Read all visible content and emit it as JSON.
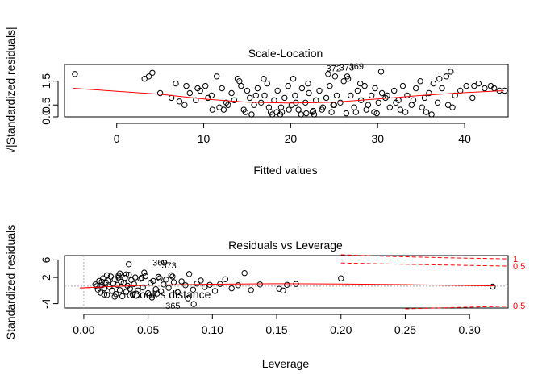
{
  "chart_data": [
    {
      "type": "scatter",
      "title": "Scale-Location",
      "xlabel": "Fitted values",
      "ylabel": "√|Standardized residuals|",
      "xlim": [
        -6,
        45
      ],
      "ylim": [
        0,
        2.2
      ],
      "xticks": [
        "0",
        "10",
        "20",
        "30",
        "40"
      ],
      "xtick_values": [
        0,
        10,
        20,
        30,
        40
      ],
      "yticks": [
        "0.0",
        "0.5",
        "1.5"
      ],
      "ytick_values": [
        0.0,
        0.5,
        1.5
      ],
      "point_labels": [
        {
          "text": "372",
          "x": 25.8,
          "y": 2.05
        },
        {
          "text": "373",
          "x": 27.3,
          "y": 2.08
        },
        {
          "text": "369",
          "x": 28.4,
          "y": 2.13
        }
      ],
      "smooth": {
        "color": "#ff0000",
        "x": [
          -5,
          5,
          10,
          15,
          20,
          25,
          30,
          35,
          40,
          44.5
        ],
        "y": [
          1.2,
          0.95,
          0.75,
          0.62,
          0.58,
          0.62,
          0.75,
          0.9,
          1.02,
          1.1
        ]
      },
      "points": {
        "x": [
          -4.8,
          3.2,
          3.7,
          4.1,
          5.0,
          6.3,
          6.8,
          7.2,
          7.8,
          8.4,
          9.1,
          9.6,
          10.2,
          10.9,
          11.5,
          11.8,
          12.1,
          12.6,
          13.2,
          13.5,
          14.1,
          14.6,
          15.0,
          15.3,
          15.8,
          16.2,
          16.6,
          17.0,
          17.3,
          17.7,
          18.1,
          18.5,
          18.9,
          19.3,
          19.7,
          20.1,
          20.5,
          20.9,
          21.3,
          21.7,
          22.1,
          22.5,
          22.9,
          23.3,
          23.7,
          24.1,
          24.5,
          24.9,
          25.3,
          25.7,
          26.1,
          26.5,
          26.9,
          27.3,
          27.7,
          28.1,
          28.5,
          28.9,
          29.3,
          29.7,
          30.1,
          30.5,
          30.9,
          31.4,
          31.9,
          32.4,
          32.9,
          33.4,
          33.9,
          34.4,
          34.9,
          35.4,
          35.9,
          36.4,
          36.9,
          37.4,
          37.9,
          38.4,
          38.9,
          39.5,
          40.2,
          40.9,
          41.6,
          42.3,
          43.0,
          44.0,
          44.6,
          9.3,
          11.0,
          12.8,
          14.3,
          16.0,
          17.5,
          19.0,
          20.6,
          22.0,
          23.6,
          25.0,
          26.6,
          28.0,
          29.6,
          31.1,
          32.6,
          34.1,
          35.6,
          37.1,
          38.6,
          15.5,
          17.9,
          20.3,
          22.7,
          25.1,
          27.5,
          29.9,
          18.4,
          21.2,
          24.3,
          13.9,
          16.9,
          19.8,
          22.6,
          26.4,
          30.4,
          33.2,
          36.2,
          8.0,
          10.5,
          12.3,
          14.8,
          18.8,
          21.8,
          24.7,
          28.7,
          32.1,
          35.1,
          38.1,
          41.1,
          43.4
        ],
        "y": [
          1.8,
          1.6,
          1.7,
          1.85,
          1.0,
          0.8,
          1.4,
          0.65,
          0.5,
          1.0,
          0.7,
          1.1,
          1.3,
          0.9,
          1.7,
          0.4,
          1.2,
          0.6,
          1.0,
          0.7,
          1.5,
          0.3,
          1.1,
          0.8,
          0.5,
          1.2,
          0.6,
          0.9,
          1.4,
          0.2,
          0.7,
          1.1,
          0.4,
          0.8,
          1.3,
          0.5,
          0.9,
          0.3,
          1.2,
          0.6,
          1.0,
          0.2,
          0.7,
          1.1,
          0.4,
          0.8,
          1.3,
          0.5,
          0.9,
          0.6,
          1.5,
          1.7,
          0.9,
          0.4,
          1.1,
          0.7,
          1.3,
          0.5,
          0.9,
          1.2,
          0.6,
          1.0,
          0.8,
          0.4,
          1.1,
          0.7,
          1.3,
          0.9,
          0.5,
          1.2,
          1.5,
          0.8,
          1.0,
          1.4,
          0.6,
          1.2,
          1.7,
          1.9,
          0.9,
          1.1,
          1.3,
          0.8,
          1.4,
          1.2,
          1.3,
          1.1,
          1.1,
          1.2,
          0.3,
          0.5,
          1.3,
          0.9,
          0.4,
          0.2,
          0.6,
          1.4,
          0.3,
          0.5,
          1.6,
          1.4,
          0.2,
          0.9,
          0.3,
          0.7,
          0.2,
          1.6,
          0.4,
          0.1,
          0.1,
          1.6,
          0.1,
          1.7,
          0.2,
          0.15,
          0.2,
          0.1,
          1.8,
          1.6,
          1.6,
          0.3,
          0.25,
          0.15,
          1.9,
          0.2,
          0.1,
          1.3,
          0.8,
          0.3,
          0.2,
          0.1,
          0.15,
          0.2,
          0.3,
          0.6,
          0.4,
          0.5,
          1.3,
          1.2
        ]
      }
    },
    {
      "type": "scatter",
      "title": "Residuals vs Leverage",
      "xlabel": "Leverage",
      "ylabel": "Standardized residuals",
      "xlim": [
        -0.015,
        0.33
      ],
      "ylim": [
        -5,
        7
      ],
      "xticks": [
        "0.00",
        "0.05",
        "0.10",
        "0.15",
        "0.20",
        "0.25",
        "0.30"
      ],
      "xtick_values": [
        0.0,
        0.05,
        0.1,
        0.15,
        0.2,
        0.25,
        0.3
      ],
      "yticks": [
        "-4",
        "2",
        "6"
      ],
      "ytick_values": [
        -4,
        2,
        6
      ],
      "legend_text": "Cook's distance",
      "point_labels": [
        {
          "text": "369",
          "x": 0.065,
          "y": 5.4
        },
        {
          "text": "373",
          "x": 0.072,
          "y": 4.8
        },
        {
          "text": "365",
          "x": 0.075,
          "y": -4.4
        }
      ],
      "cook_labels": [
        {
          "text": "1",
          "y": 6.3
        },
        {
          "text": "0.5",
          "y": 4.6
        },
        {
          "text": "0.5",
          "y": -4.4
        }
      ],
      "smooth": {
        "color": "#ff0000",
        "x": [
          -0.003,
          0.02,
          0.05,
          0.1,
          0.15,
          0.2,
          0.25,
          0.32
        ],
        "y": [
          -0.4,
          -0.1,
          0.2,
          0.45,
          0.55,
          0.5,
          0.35,
          0.05
        ]
      },
      "cook_curves": [
        {
          "x": [
            0.2,
            0.24,
            0.28,
            0.33
          ],
          "y": [
            7.2,
            6.8,
            6.5,
            6.25
          ]
        },
        {
          "x": [
            0.2,
            0.25,
            0.3,
            0.33
          ],
          "y": [
            5.3,
            5.0,
            4.75,
            4.6
          ]
        },
        {
          "x": [
            0.25,
            0.3,
            0.33
          ],
          "y": [
            -5.2,
            -4.8,
            -4.6
          ]
        }
      ],
      "points": {
        "x": [
          0.009,
          0.011,
          0.012,
          0.013,
          0.014,
          0.015,
          0.016,
          0.017,
          0.018,
          0.019,
          0.02,
          0.021,
          0.022,
          0.023,
          0.024,
          0.025,
          0.026,
          0.027,
          0.028,
          0.029,
          0.03,
          0.031,
          0.032,
          0.033,
          0.034,
          0.035,
          0.036,
          0.037,
          0.038,
          0.039,
          0.04,
          0.042,
          0.044,
          0.046,
          0.048,
          0.05,
          0.052,
          0.054,
          0.056,
          0.058,
          0.06,
          0.062,
          0.064,
          0.066,
          0.068,
          0.07,
          0.073,
          0.076,
          0.079,
          0.082,
          0.085,
          0.088,
          0.091,
          0.094,
          0.098,
          0.102,
          0.106,
          0.11,
          0.115,
          0.12,
          0.125,
          0.13,
          0.137,
          0.152,
          0.155,
          0.158,
          0.165,
          0.2,
          0.318,
          0.035,
          0.0625,
          0.0855,
          0.016,
          0.024,
          0.028,
          0.033,
          0.041,
          0.047,
          0.053,
          0.059,
          0.018,
          0.027,
          0.036,
          0.045,
          0.057,
          0.069,
          0.081,
          0.01,
          0.014,
          0.022
        ],
        "y": [
          0.4,
          -0.8,
          1.2,
          -1.5,
          0.2,
          1.8,
          -0.5,
          0.9,
          -2.0,
          1.3,
          -0.2,
          2.2,
          -1.1,
          0.6,
          1.6,
          -1.8,
          0.3,
          2.4,
          -0.9,
          1.0,
          -2.3,
          0.7,
          1.9,
          -1.3,
          0.1,
          2.6,
          -0.6,
          1.4,
          -1.9,
          0.5,
          2.0,
          -1.0,
          1.7,
          -0.3,
          2.3,
          -1.6,
          0.8,
          1.2,
          -0.7,
          2.1,
          -1.2,
          0.4,
          1.5,
          -0.4,
          2.5,
          0.9,
          -1.4,
          1.1,
          0.2,
          2.8,
          -0.8,
          0.6,
          1.3,
          -0.2,
          0.3,
          -1.1,
          0.5,
          1.6,
          -0.5,
          0.2,
          3.0,
          -0.9,
          0.4,
          -0.6,
          -1.0,
          0.3,
          0.5,
          1.8,
          -0.1,
          5.0,
          5.4,
          -4.1,
          -1.9,
          -2.4,
          2.9,
          2.7,
          -2.2,
          3.1,
          -2.6,
          1.8,
          2.5,
          2.0,
          -2.1,
          1.9,
          -1.7,
          2.2,
          -2.8,
          0.0,
          1.0,
          -1.0
        ]
      }
    }
  ]
}
